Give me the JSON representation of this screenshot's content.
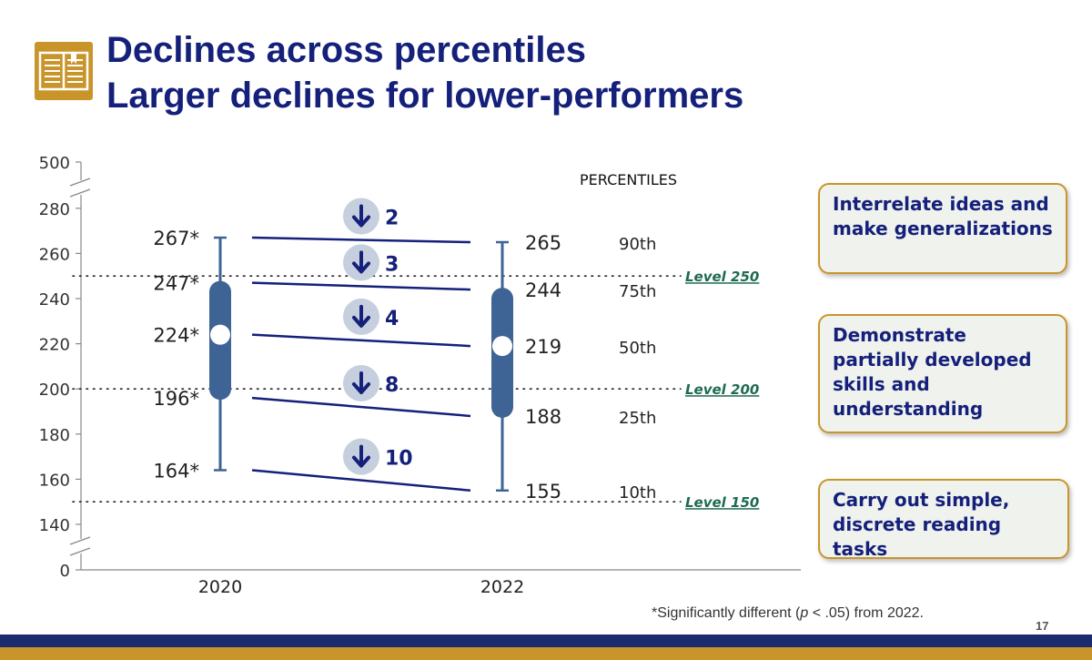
{
  "header": {
    "title_line1": "Declines across percentiles",
    "title_line2": "Larger declines for lower-performers",
    "icon": "open-book-icon"
  },
  "colors": {
    "navy": "#14207a",
    "gold": "#c9952a",
    "box": "#3e6496",
    "arrow_circle": "#c5cfdd",
    "level_text": "#1f6b4f"
  },
  "chart_data": {
    "type": "box",
    "percentiles_label": "PERCENTILES",
    "y_ticks": [
      0,
      140,
      160,
      180,
      200,
      220,
      240,
      260,
      280,
      500
    ],
    "y_axis_break": true,
    "years": [
      "2020",
      "2022"
    ],
    "percentile_names": [
      "90th",
      "75th",
      "50th",
      "25th",
      "10th"
    ],
    "series": [
      {
        "year": "2020",
        "values": [
          267,
          247,
          224,
          196,
          164
        ],
        "labels": [
          "267*",
          "247*",
          "224*",
          "196*",
          "164*"
        ]
      },
      {
        "year": "2022",
        "values": [
          265,
          244,
          219,
          188,
          155
        ],
        "labels": [
          "265",
          "244",
          "219",
          "188",
          "155"
        ]
      }
    ],
    "declines": [
      "2",
      "3",
      "4",
      "8",
      "10"
    ],
    "levels": [
      {
        "value": 250,
        "label": "Level 250"
      },
      {
        "value": 200,
        "label": "Level 200"
      },
      {
        "value": 150,
        "label": "Level 150"
      }
    ]
  },
  "callouts": [
    "Interrelate ideas and make generalizations",
    "Demonstrate partially developed skills and understanding",
    "Carry out simple, discrete reading tasks"
  ],
  "footnote": {
    "prefix": "*Significantly different (",
    "p": "p",
    "suffix": " < .05) from 2022."
  },
  "page_number": "17"
}
